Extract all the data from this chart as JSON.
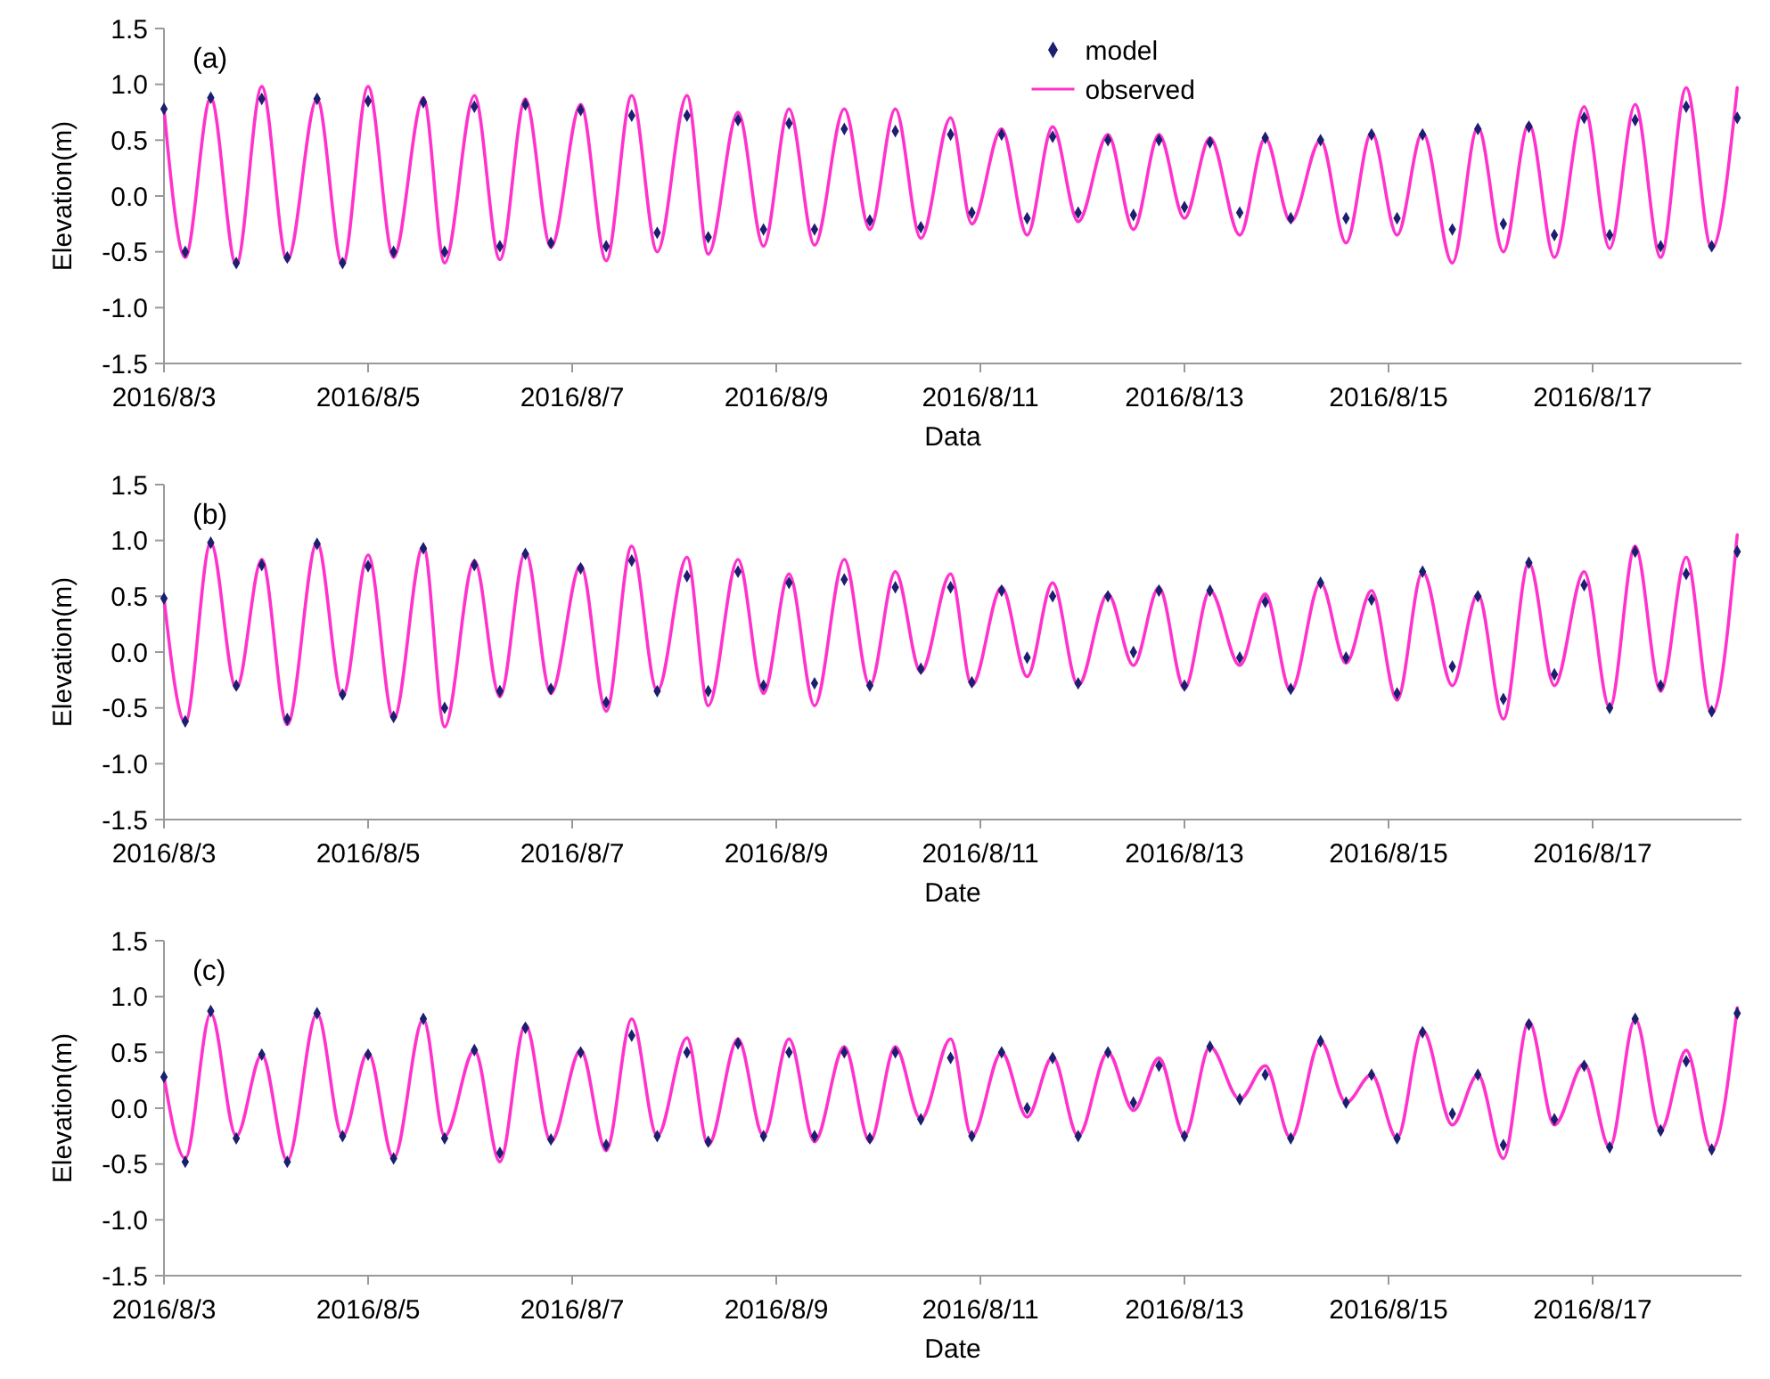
{
  "chart_data": [
    {
      "type": "line",
      "annotations": [
        "(a)"
      ],
      "xlabel": "Data",
      "ylabel": "Elevation(m)",
      "legend": "top right",
      "grid": false,
      "xlim": [
        "2016-08-03",
        "2016-08-18T11:00"
      ],
      "xticks": [
        {
          "value": "2016-08-03",
          "label": "2016/8/3"
        },
        {
          "value": "2016-08-05",
          "label": "2016/8/5"
        },
        {
          "value": "2016-08-07",
          "label": "2016/8/7"
        },
        {
          "value": "2016-08-09",
          "label": "2016/8/9"
        },
        {
          "value": "2016-08-11",
          "label": "2016/8/11"
        },
        {
          "value": "2016-08-13",
          "label": "2016/8/13"
        },
        {
          "value": "2016-08-15",
          "label": "2016/8/15"
        },
        {
          "value": "2016-08-17",
          "label": "2016/8/17"
        }
      ],
      "ylim": [
        -1.5,
        1.5
      ],
      "yticks": [
        -1.5,
        {
          "value": -1,
          "label": "-1.0"
        },
        -0.5,
        {
          "value": 0,
          "label": "0.0"
        },
        0.5,
        {
          "value": 1,
          "label": "1.0"
        },
        1.5
      ],
      "x": [
        "2016-08-03T00:00",
        "2016-08-03T05:00",
        "2016-08-03T11:00",
        "2016-08-03T17:00",
        "2016-08-03T23:00",
        "2016-08-04T05:00",
        "2016-08-04T12:00",
        "2016-08-04T18:00",
        "2016-08-05T00:00",
        "2016-08-05T06:00",
        "2016-08-05T13:00",
        "2016-08-05T18:00",
        "2016-08-06T01:00",
        "2016-08-06T07:00",
        "2016-08-06T13:00",
        "2016-08-06T19:00",
        "2016-08-07T02:00",
        "2016-08-07T08:00",
        "2016-08-07T14:00",
        "2016-08-07T20:00",
        "2016-08-08T03:00",
        "2016-08-08T08:00",
        "2016-08-08T15:00",
        "2016-08-08T21:00",
        "2016-08-09T03:00",
        "2016-08-09T09:00",
        "2016-08-09T16:00",
        "2016-08-09T22:00",
        "2016-08-10T04:00",
        "2016-08-10T10:00",
        "2016-08-10T17:00",
        "2016-08-10T22:00",
        "2016-08-11T05:00",
        "2016-08-11T11:00",
        "2016-08-11T17:00",
        "2016-08-11T23:00",
        "2016-08-12T06:00",
        "2016-08-12T12:00",
        "2016-08-12T18:00",
        "2016-08-13T00:00",
        "2016-08-13T06:00",
        "2016-08-13T13:00",
        "2016-08-13T19:00",
        "2016-08-14T01:00",
        "2016-08-14T08:00",
        "2016-08-14T14:00",
        "2016-08-14T20:00",
        "2016-08-15T02:00",
        "2016-08-15T08:00",
        "2016-08-15T15:00",
        "2016-08-15T21:00",
        "2016-08-16T03:00",
        "2016-08-16T09:00",
        "2016-08-16T15:00",
        "2016-08-16T22:00",
        "2016-08-17T04:00",
        "2016-08-17T10:00",
        "2016-08-17T16:00",
        "2016-08-17T22:00",
        "2016-08-18T04:00",
        "2016-08-18T10:00"
      ],
      "series": [
        {
          "name": "observed",
          "color": "#ff33cc",
          "values": [
            0.78,
            -0.55,
            0.88,
            -0.62,
            0.98,
            -0.58,
            0.87,
            -0.62,
            0.98,
            -0.55,
            0.88,
            -0.6,
            0.9,
            -0.57,
            0.87,
            -0.46,
            0.82,
            -0.58,
            0.9,
            -0.5,
            0.9,
            -0.52,
            0.75,
            -0.45,
            0.78,
            -0.44,
            0.78,
            -0.3,
            0.78,
            -0.38,
            0.7,
            -0.25,
            0.6,
            -0.35,
            0.62,
            -0.23,
            0.55,
            -0.3,
            0.55,
            -0.2,
            0.52,
            -0.35,
            0.52,
            -0.23,
            0.5,
            -0.42,
            0.57,
            -0.35,
            0.57,
            -0.6,
            0.62,
            -0.5,
            0.65,
            -0.55,
            0.8,
            -0.47,
            0.82,
            -0.55,
            0.97,
            -0.47,
            0.97
          ]
        },
        {
          "name": "model",
          "type": "scatter",
          "marker": "diamond",
          "color": "#1a1f6e",
          "values": [
            0.78,
            -0.5,
            0.88,
            -0.6,
            0.87,
            -0.55,
            0.87,
            -0.6,
            0.85,
            -0.5,
            0.84,
            -0.5,
            0.8,
            -0.45,
            0.82,
            -0.42,
            0.77,
            -0.45,
            0.72,
            -0.33,
            0.72,
            -0.37,
            0.68,
            -0.3,
            0.65,
            -0.3,
            0.6,
            -0.22,
            0.58,
            -0.28,
            0.55,
            -0.15,
            0.55,
            -0.2,
            0.53,
            -0.15,
            0.5,
            -0.17,
            0.5,
            -0.1,
            0.48,
            -0.15,
            0.52,
            -0.2,
            0.5,
            -0.2,
            0.55,
            -0.2,
            0.55,
            -0.3,
            0.6,
            -0.25,
            0.62,
            -0.35,
            0.7,
            -0.35,
            0.68,
            -0.45,
            0.8,
            -0.45,
            0.7
          ]
        }
      ]
    },
    {
      "type": "line",
      "annotations": [
        "(b)"
      ],
      "xlabel": "Date",
      "ylabel": "Elevation(m)",
      "grid": false,
      "xlim": [
        "2016-08-03",
        "2016-08-18T11:00"
      ],
      "xticks": [
        {
          "value": "2016-08-03",
          "label": "2016/8/3"
        },
        {
          "value": "2016-08-05",
          "label": "2016/8/5"
        },
        {
          "value": "2016-08-07",
          "label": "2016/8/7"
        },
        {
          "value": "2016-08-09",
          "label": "2016/8/9"
        },
        {
          "value": "2016-08-11",
          "label": "2016/8/11"
        },
        {
          "value": "2016-08-13",
          "label": "2016/8/13"
        },
        {
          "value": "2016-08-15",
          "label": "2016/8/15"
        },
        {
          "value": "2016-08-17",
          "label": "2016/8/17"
        }
      ],
      "ylim": [
        -1.5,
        1.5
      ],
      "yticks": [
        -1.5,
        {
          "value": -1,
          "label": "-1.0"
        },
        -0.5,
        {
          "value": 0,
          "label": "0.0"
        },
        0.5,
        {
          "value": 1,
          "label": "1.0"
        },
        1.5
      ],
      "x": [
        "2016-08-03T00:00",
        "2016-08-03T05:00",
        "2016-08-03T11:00",
        "2016-08-03T17:00",
        "2016-08-03T23:00",
        "2016-08-04T05:00",
        "2016-08-04T12:00",
        "2016-08-04T18:00",
        "2016-08-05T00:00",
        "2016-08-05T06:00",
        "2016-08-05T13:00",
        "2016-08-05T18:00",
        "2016-08-06T01:00",
        "2016-08-06T07:00",
        "2016-08-06T13:00",
        "2016-08-06T19:00",
        "2016-08-07T02:00",
        "2016-08-07T08:00",
        "2016-08-07T14:00",
        "2016-08-07T20:00",
        "2016-08-08T03:00",
        "2016-08-08T08:00",
        "2016-08-08T15:00",
        "2016-08-08T21:00",
        "2016-08-09T03:00",
        "2016-08-09T09:00",
        "2016-08-09T16:00",
        "2016-08-09T22:00",
        "2016-08-10T04:00",
        "2016-08-10T10:00",
        "2016-08-10T17:00",
        "2016-08-10T22:00",
        "2016-08-11T05:00",
        "2016-08-11T11:00",
        "2016-08-11T17:00",
        "2016-08-11T23:00",
        "2016-08-12T06:00",
        "2016-08-12T12:00",
        "2016-08-12T18:00",
        "2016-08-13T00:00",
        "2016-08-13T06:00",
        "2016-08-13T13:00",
        "2016-08-13T19:00",
        "2016-08-14T01:00",
        "2016-08-14T08:00",
        "2016-08-14T14:00",
        "2016-08-14T20:00",
        "2016-08-15T02:00",
        "2016-08-15T08:00",
        "2016-08-15T15:00",
        "2016-08-15T21:00",
        "2016-08-16T03:00",
        "2016-08-16T09:00",
        "2016-08-16T15:00",
        "2016-08-16T22:00",
        "2016-08-17T04:00",
        "2016-08-17T10:00",
        "2016-08-17T16:00",
        "2016-08-17T22:00",
        "2016-08-18T04:00",
        "2016-08-18T10:00"
      ],
      "series": [
        {
          "color": "#ff33cc",
          "values": [
            0.48,
            -0.63,
            0.98,
            -0.33,
            0.83,
            -0.65,
            0.98,
            -0.4,
            0.87,
            -0.6,
            0.95,
            -0.67,
            0.82,
            -0.4,
            0.9,
            -0.37,
            0.78,
            -0.53,
            0.95,
            -0.35,
            0.85,
            -0.48,
            0.83,
            -0.37,
            0.7,
            -0.48,
            0.83,
            -0.3,
            0.72,
            -0.18,
            0.7,
            -0.3,
            0.58,
            -0.22,
            0.62,
            -0.3,
            0.52,
            -0.12,
            0.58,
            -0.33,
            0.55,
            -0.12,
            0.52,
            -0.35,
            0.62,
            -0.1,
            0.55,
            -0.43,
            0.72,
            -0.3,
            0.52,
            -0.6,
            0.8,
            -0.3,
            0.72,
            -0.5,
            0.95,
            -0.35,
            0.85,
            -0.55,
            1.05
          ]
        },
        {
          "type": "scatter",
          "marker": "diamond",
          "color": "#1a1f6e",
          "values": [
            0.48,
            -0.62,
            0.98,
            -0.3,
            0.78,
            -0.6,
            0.97,
            -0.38,
            0.77,
            -0.58,
            0.93,
            -0.5,
            0.78,
            -0.35,
            0.88,
            -0.33,
            0.75,
            -0.45,
            0.82,
            -0.35,
            0.68,
            -0.35,
            0.72,
            -0.3,
            0.62,
            -0.28,
            0.65,
            -0.3,
            0.58,
            -0.15,
            0.58,
            -0.27,
            0.55,
            -0.05,
            0.5,
            -0.28,
            0.5,
            0,
            0.55,
            -0.3,
            0.55,
            -0.05,
            0.45,
            -0.33,
            0.62,
            -0.05,
            0.47,
            -0.37,
            0.72,
            -0.13,
            0.5,
            -0.42,
            0.8,
            -0.2,
            0.6,
            -0.5,
            0.9,
            -0.3,
            0.7,
            -0.53,
            0.9
          ]
        }
      ]
    },
    {
      "type": "line",
      "annotations": [
        "(c)"
      ],
      "xlabel": "Date",
      "ylabel": "Elevation(m)",
      "grid": false,
      "xlim": [
        "2016-08-03",
        "2016-08-18T11:00"
      ],
      "xticks": [
        {
          "value": "2016-08-03",
          "label": "2016/8/3"
        },
        {
          "value": "2016-08-05",
          "label": "2016/8/5"
        },
        {
          "value": "2016-08-07",
          "label": "2016/8/7"
        },
        {
          "value": "2016-08-09",
          "label": "2016/8/9"
        },
        {
          "value": "2016-08-11",
          "label": "2016/8/11"
        },
        {
          "value": "2016-08-13",
          "label": "2016/8/13"
        },
        {
          "value": "2016-08-15",
          "label": "2016/8/15"
        },
        {
          "value": "2016-08-17",
          "label": "2016/8/17"
        }
      ],
      "ylim": [
        -1.5,
        1.5
      ],
      "yticks": [
        -1.5,
        {
          "value": -1,
          "label": "-1.0"
        },
        -0.5,
        {
          "value": 0,
          "label": "0.0"
        },
        0.5,
        {
          "value": 1,
          "label": "1.0"
        },
        1.5
      ],
      "x": [
        "2016-08-03T00:00",
        "2016-08-03T05:00",
        "2016-08-03T11:00",
        "2016-08-03T17:00",
        "2016-08-03T23:00",
        "2016-08-04T05:00",
        "2016-08-04T12:00",
        "2016-08-04T18:00",
        "2016-08-05T00:00",
        "2016-08-05T06:00",
        "2016-08-05T13:00",
        "2016-08-05T18:00",
        "2016-08-06T01:00",
        "2016-08-06T07:00",
        "2016-08-06T13:00",
        "2016-08-06T19:00",
        "2016-08-07T02:00",
        "2016-08-07T08:00",
        "2016-08-07T14:00",
        "2016-08-07T20:00",
        "2016-08-08T03:00",
        "2016-08-08T08:00",
        "2016-08-08T15:00",
        "2016-08-08T21:00",
        "2016-08-09T03:00",
        "2016-08-09T09:00",
        "2016-08-09T16:00",
        "2016-08-09T22:00",
        "2016-08-10T04:00",
        "2016-08-10T10:00",
        "2016-08-10T17:00",
        "2016-08-10T22:00",
        "2016-08-11T05:00",
        "2016-08-11T11:00",
        "2016-08-11T17:00",
        "2016-08-11T23:00",
        "2016-08-12T06:00",
        "2016-08-12T12:00",
        "2016-08-12T18:00",
        "2016-08-13T00:00",
        "2016-08-13T06:00",
        "2016-08-13T13:00",
        "2016-08-13T19:00",
        "2016-08-14T01:00",
        "2016-08-14T08:00",
        "2016-08-14T14:00",
        "2016-08-14T20:00",
        "2016-08-15T02:00",
        "2016-08-15T08:00",
        "2016-08-15T15:00",
        "2016-08-15T21:00",
        "2016-08-16T03:00",
        "2016-08-16T09:00",
        "2016-08-16T15:00",
        "2016-08-16T22:00",
        "2016-08-17T04:00",
        "2016-08-17T10:00",
        "2016-08-17T16:00",
        "2016-08-17T22:00",
        "2016-08-18T04:00",
        "2016-08-18T10:00"
      ],
      "series": [
        {
          "color": "#ff33cc",
          "values": [
            0.28,
            -0.45,
            0.85,
            -0.25,
            0.48,
            -0.47,
            0.85,
            -0.25,
            0.5,
            -0.45,
            0.8,
            -0.25,
            0.52,
            -0.48,
            0.75,
            -0.3,
            0.52,
            -0.38,
            0.8,
            -0.25,
            0.63,
            -0.33,
            0.62,
            -0.25,
            0.62,
            -0.3,
            0.55,
            -0.3,
            0.55,
            -0.1,
            0.62,
            -0.25,
            0.5,
            -0.08,
            0.46,
            -0.25,
            0.5,
            -0.02,
            0.45,
            -0.25,
            0.55,
            0.08,
            0.38,
            -0.27,
            0.6,
            0.05,
            0.3,
            -0.27,
            0.7,
            -0.15,
            0.3,
            -0.45,
            0.78,
            -0.15,
            0.4,
            -0.35,
            0.8,
            -0.2,
            0.52,
            -0.37,
            0.9
          ]
        },
        {
          "type": "scatter",
          "marker": "diamond",
          "color": "#1a1f6e",
          "values": [
            0.28,
            -0.48,
            0.87,
            -0.27,
            0.48,
            -0.48,
            0.85,
            -0.25,
            0.48,
            -0.45,
            0.8,
            -0.27,
            0.52,
            -0.4,
            0.72,
            -0.28,
            0.5,
            -0.33,
            0.65,
            -0.25,
            0.5,
            -0.3,
            0.58,
            -0.25,
            0.5,
            -0.25,
            0.5,
            -0.27,
            0.5,
            -0.1,
            0.45,
            -0.25,
            0.5,
            0,
            0.45,
            -0.25,
            0.5,
            0.05,
            0.38,
            -0.25,
            0.55,
            0.08,
            0.3,
            -0.27,
            0.6,
            0.05,
            0.3,
            -0.27,
            0.68,
            -0.05,
            0.3,
            -0.33,
            0.75,
            -0.1,
            0.38,
            -0.35,
            0.8,
            -0.2,
            0.42,
            -0.37,
            0.85
          ]
        }
      ]
    }
  ]
}
